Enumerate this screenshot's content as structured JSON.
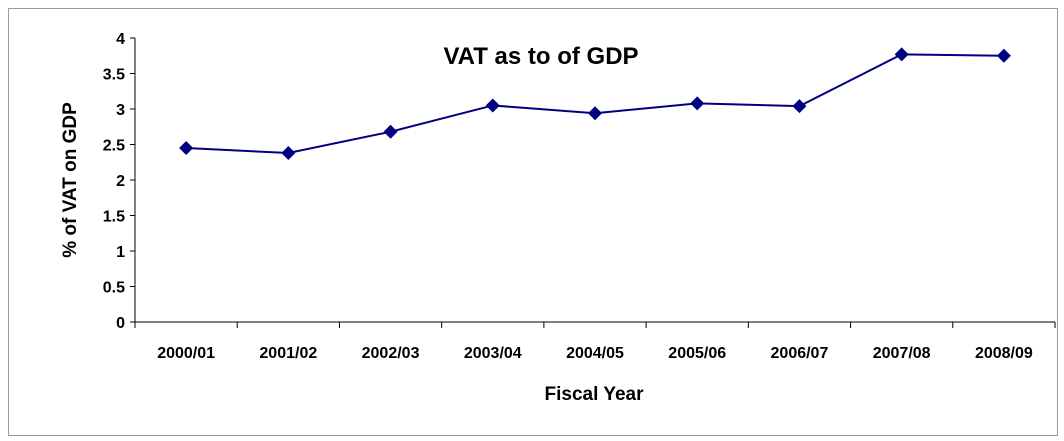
{
  "chart_data": {
    "type": "line",
    "title": "VAT as to of GDP",
    "xlabel": "Fiscal Year",
    "ylabel": "% of VAT on GDP",
    "categories": [
      "2000/01",
      "2001/02",
      "2002/03",
      "2003/04",
      "2004/05",
      "2005/06",
      "2006/07",
      "2007/08",
      "2008/09"
    ],
    "series": [
      {
        "values": [
          2.45,
          2.38,
          2.68,
          3.05,
          2.94,
          3.08,
          3.04,
          3.77,
          3.75
        ]
      }
    ],
    "ylim": [
      0,
      4
    ],
    "yticks": [
      "0",
      "0.5",
      "1",
      "1.5",
      "2",
      "2.5",
      "3",
      "3.5",
      "4"
    ],
    "grid": false,
    "legend": "none",
    "colors": {
      "series": "#000080",
      "axis": "#000000"
    }
  }
}
